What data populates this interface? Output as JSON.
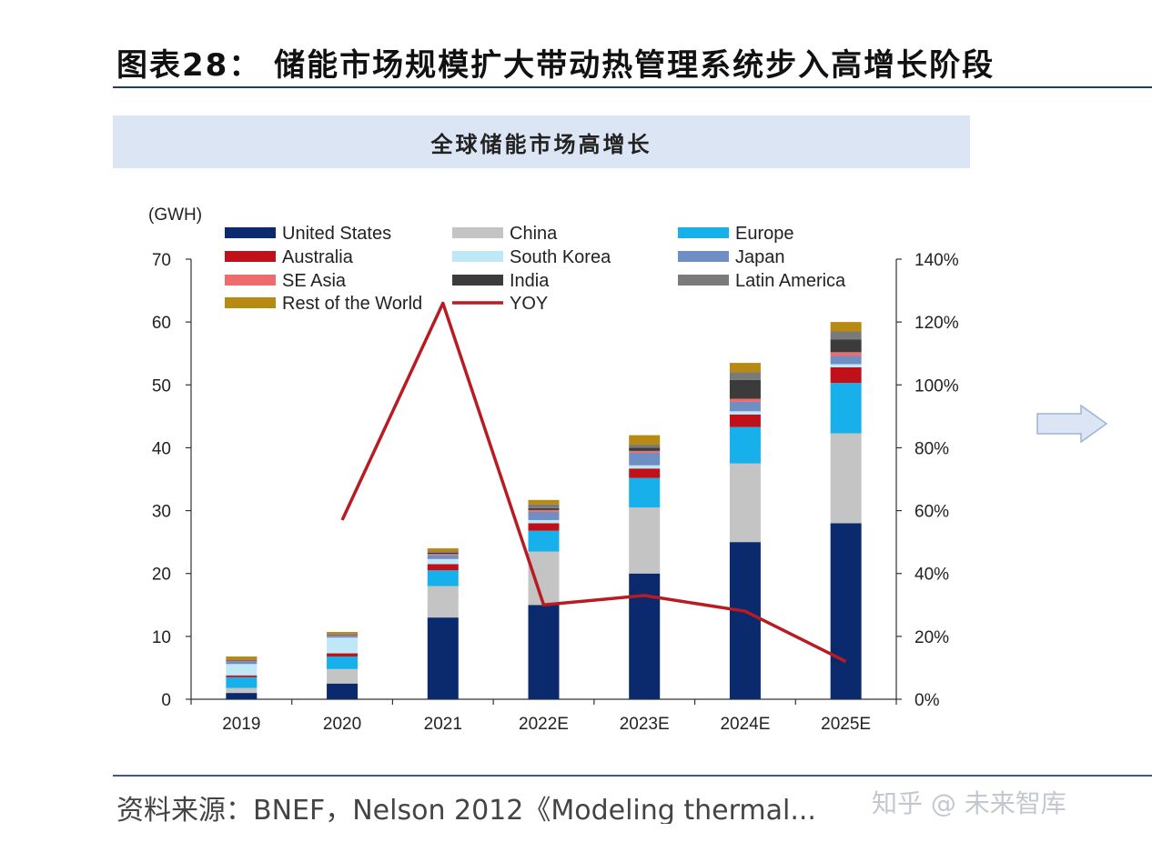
{
  "header": {
    "title": "图表28： 储能市场规模扩大带动热管理系统步入高增长阶段",
    "panel_title": "全球储能市场高增长"
  },
  "footer": {
    "source": "资料来源：BNEF，Nelson 2012《Modeling thermal...",
    "watermark": "知乎 @ 未来智库"
  },
  "chart_data": {
    "type": "bar",
    "stacked": true,
    "title": "全球储能市场高增长",
    "ylabel": "(GWH)",
    "ylim": [
      0,
      70
    ],
    "y_ticks": [
      "0",
      "10",
      "20",
      "30",
      "40",
      "50",
      "60",
      "70"
    ],
    "y2lim": [
      0,
      140
    ],
    "y2_ticks": [
      "0%",
      "20%",
      "40%",
      "60%",
      "80%",
      "100%",
      "120%",
      "140%"
    ],
    "categories": [
      "2019",
      "2020",
      "2021",
      "2022E",
      "2023E",
      "2024E",
      "2025E"
    ],
    "legend_position": "top",
    "series": [
      {
        "name": "United States",
        "color": "#0b2a6e",
        "values": [
          1.0,
          2.5,
          13.0,
          15.0,
          20.0,
          25.0,
          28.0
        ]
      },
      {
        "name": "China",
        "color": "#c4c4c4",
        "values": [
          0.8,
          2.3,
          5.0,
          8.5,
          10.5,
          12.5,
          14.3
        ]
      },
      {
        "name": "Europe",
        "color": "#17b0ea",
        "values": [
          1.7,
          2.0,
          2.5,
          3.3,
          4.7,
          5.8,
          8.0
        ]
      },
      {
        "name": "Australia",
        "color": "#c0111a",
        "values": [
          0.3,
          0.5,
          1.0,
          1.2,
          1.5,
          2.0,
          2.5
        ]
      },
      {
        "name": "South Korea",
        "color": "#bfe8f7",
        "values": [
          1.8,
          2.5,
          0.8,
          0.5,
          0.5,
          0.5,
          0.5
        ]
      },
      {
        "name": "Japan",
        "color": "#6f8fc4",
        "values": [
          0.4,
          0.3,
          0.6,
          1.3,
          2.0,
          1.5,
          1.3
        ]
      },
      {
        "name": "SE Asia",
        "color": "#ef6c6c",
        "values": [
          0.1,
          0.1,
          0.2,
          0.3,
          0.3,
          0.5,
          0.6
        ]
      },
      {
        "name": "India",
        "color": "#3b3b3b",
        "values": [
          0.1,
          0.1,
          0.2,
          0.3,
          0.5,
          3.0,
          2.0
        ]
      },
      {
        "name": "Latin America",
        "color": "#7a7a7a",
        "values": [
          0.1,
          0.1,
          0.2,
          0.6,
          0.5,
          1.2,
          1.3
        ]
      },
      {
        "name": "Rest of the World",
        "color": "#b88a12",
        "values": [
          0.5,
          0.3,
          0.5,
          0.7,
          1.5,
          1.5,
          1.5
        ]
      }
    ],
    "yoy": {
      "name": "YOY",
      "color": "#b81c22",
      "values": [
        null,
        57,
        126,
        30,
        33,
        28,
        12
      ]
    },
    "grid": false
  }
}
